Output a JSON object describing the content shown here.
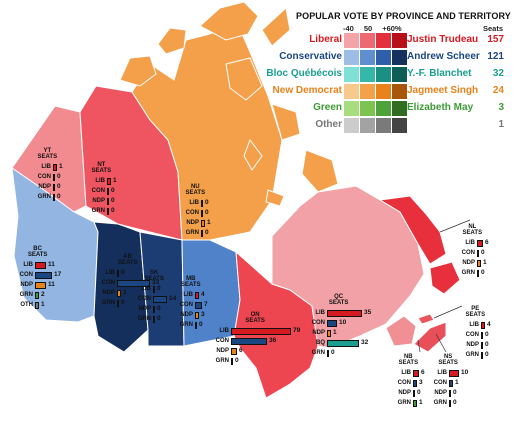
{
  "legend": {
    "title": "POPULAR VOTE BY PROVINCE AND TERRITORY",
    "scale_labels": [
      "-40",
      "50",
      "+60%"
    ],
    "seats_header": "Seats",
    "parties": [
      {
        "party": "Liberal",
        "leader": "Justin Trudeau",
        "seats": "157",
        "color": "#d71920",
        "shades": [
          "#f4a3a8",
          "#ee6a73",
          "#e3303a",
          "#b8101a"
        ]
      },
      {
        "party": "Conservative",
        "leader": "Andrew Scheer",
        "seats": "121",
        "color": "#1a4782",
        "shades": [
          "#9ebde6",
          "#5f8fd0",
          "#2f5fa8",
          "#15325f"
        ]
      },
      {
        "party": "Bloc Québécois",
        "leader": "Y.-F. Blanchet",
        "seats": "32",
        "color": "#1b9e8f",
        "shades": [
          "#7fe0d6",
          "#35b8a8",
          "#1b8f82",
          "#0d5e55"
        ]
      },
      {
        "party": "New Democrat",
        "leader": "Jagmeet Singh",
        "seats": "24",
        "color": "#e8821b",
        "shades": [
          "#f8c98c",
          "#f3a24a",
          "#e8821b",
          "#a8570a"
        ]
      },
      {
        "party": "Green",
        "leader": "Elizabeth May",
        "seats": "3",
        "color": "#3d9b35",
        "shades": [
          "#a7dc7f",
          "#7cc44f",
          "#4ea23a",
          "#2f6e22"
        ]
      },
      {
        "party": "Other",
        "leader": "",
        "seats": "1",
        "color": "#777777",
        "shades": [
          "#cccccc",
          "#a3a3a3",
          "#7a7a7a",
          "#444444"
        ]
      }
    ]
  },
  "provinces": [
    {
      "abbr": "YT",
      "seats_label": "SEATS",
      "rows": [
        {
          "party": "LIB",
          "seats": 1,
          "color": "#d71920"
        },
        {
          "party": "CON",
          "seats": 0,
          "color": "#1a4782"
        },
        {
          "party": "NDP",
          "seats": 0,
          "color": "#e8821b"
        },
        {
          "party": "GRN",
          "seats": 0,
          "color": "#3d9b35"
        }
      ]
    },
    {
      "abbr": "NT",
      "seats_label": "SEATS",
      "rows": [
        {
          "party": "LIB",
          "seats": 1,
          "color": "#d71920"
        },
        {
          "party": "CON",
          "seats": 0,
          "color": "#1a4782"
        },
        {
          "party": "NDP",
          "seats": 0,
          "color": "#e8821b"
        },
        {
          "party": "GRN",
          "seats": 0,
          "color": "#3d9b35"
        }
      ]
    },
    {
      "abbr": "NU",
      "seats_label": "SEATS",
      "rows": [
        {
          "party": "LIB",
          "seats": 0,
          "color": "#d71920"
        },
        {
          "party": "CON",
          "seats": 0,
          "color": "#1a4782"
        },
        {
          "party": "NDP",
          "seats": 1,
          "color": "#e8821b"
        },
        {
          "party": "GRN",
          "seats": 0,
          "color": "#3d9b35"
        }
      ]
    },
    {
      "abbr": "BC",
      "seats_label": "SEATS",
      "rows": [
        {
          "party": "LIB",
          "seats": 11,
          "color": "#d71920"
        },
        {
          "party": "CON",
          "seats": 17,
          "color": "#1a4782"
        },
        {
          "party": "NDP",
          "seats": 11,
          "color": "#e8821b"
        },
        {
          "party": "GRN",
          "seats": 2,
          "color": "#3d9b35"
        },
        {
          "party": "OTH",
          "seats": 1,
          "color": "#777777"
        }
      ]
    },
    {
      "abbr": "AB",
      "seats_label": "SEATS",
      "rows": [
        {
          "party": "LIB",
          "seats": 0,
          "color": "#d71920"
        },
        {
          "party": "CON",
          "seats": 33,
          "color": "#1a4782"
        },
        {
          "party": "NDP",
          "seats": 1,
          "color": "#e8821b"
        },
        {
          "party": "GRN",
          "seats": 0,
          "color": "#3d9b35"
        }
      ]
    },
    {
      "abbr": "SK",
      "seats_label": "SEATS",
      "rows": [
        {
          "party": "LIB",
          "seats": 0,
          "color": "#d71920"
        },
        {
          "party": "CON",
          "seats": 14,
          "color": "#1a4782"
        },
        {
          "party": "NDP",
          "seats": 0,
          "color": "#e8821b"
        },
        {
          "party": "GRN",
          "seats": 0,
          "color": "#3d9b35"
        }
      ]
    },
    {
      "abbr": "MB",
      "seats_label": "SEATS",
      "rows": [
        {
          "party": "LIB",
          "seats": 4,
          "color": "#d71920"
        },
        {
          "party": "CON",
          "seats": 7,
          "color": "#1a4782"
        },
        {
          "party": "NDP",
          "seats": 3,
          "color": "#e8821b"
        },
        {
          "party": "GRN",
          "seats": 0,
          "color": "#3d9b35"
        }
      ]
    },
    {
      "abbr": "ON",
      "seats_label": "SEATS",
      "rows": [
        {
          "party": "LIB",
          "seats": 79,
          "color": "#d71920"
        },
        {
          "party": "CON",
          "seats": 36,
          "color": "#1a4782"
        },
        {
          "party": "NDP",
          "seats": 6,
          "color": "#e8821b"
        },
        {
          "party": "GRN",
          "seats": 0,
          "color": "#3d9b35"
        }
      ]
    },
    {
      "abbr": "QC",
      "seats_label": "SEATS",
      "rows": [
        {
          "party": "LIB",
          "seats": 35,
          "color": "#d71920"
        },
        {
          "party": "CON",
          "seats": 10,
          "color": "#1a4782"
        },
        {
          "party": "NDP",
          "seats": 1,
          "color": "#e8821b"
        },
        {
          "party": "BQ",
          "seats": 32,
          "color": "#1b9e8f"
        },
        {
          "party": "GRN",
          "seats": 0,
          "color": "#3d9b35"
        }
      ]
    },
    {
      "abbr": "NL",
      "seats_label": "SEATS",
      "rows": [
        {
          "party": "LIB",
          "seats": 6,
          "color": "#d71920"
        },
        {
          "party": "CON",
          "seats": 0,
          "color": "#1a4782"
        },
        {
          "party": "NDP",
          "seats": 1,
          "color": "#e8821b"
        },
        {
          "party": "GRN",
          "seats": 0,
          "color": "#3d9b35"
        }
      ]
    },
    {
      "abbr": "PE",
      "seats_label": "SEATS",
      "rows": [
        {
          "party": "LIB",
          "seats": 4,
          "color": "#d71920"
        },
        {
          "party": "CON",
          "seats": 0,
          "color": "#1a4782"
        },
        {
          "party": "NDP",
          "seats": 0,
          "color": "#e8821b"
        },
        {
          "party": "GRN",
          "seats": 0,
          "color": "#3d9b35"
        }
      ]
    },
    {
      "abbr": "NB",
      "seats_label": "SEATS",
      "rows": [
        {
          "party": "LIB",
          "seats": 6,
          "color": "#d71920"
        },
        {
          "party": "CON",
          "seats": 3,
          "color": "#1a4782"
        },
        {
          "party": "NDP",
          "seats": 0,
          "color": "#e8821b"
        },
        {
          "party": "GRN",
          "seats": 1,
          "color": "#3d9b35"
        }
      ]
    },
    {
      "abbr": "NS",
      "seats_label": "SEATS",
      "rows": [
        {
          "party": "LIB",
          "seats": 10,
          "color": "#d71920"
        },
        {
          "party": "CON",
          "seats": 1,
          "color": "#1a4782"
        },
        {
          "party": "NDP",
          "seats": 0,
          "color": "#e8821b"
        },
        {
          "party": "GRN",
          "seats": 0,
          "color": "#3d9b35"
        }
      ]
    }
  ],
  "region_colors": {
    "YT": "#f28b8f",
    "NT": "#ee5560",
    "NU": "#f4a04a",
    "BC": "#93b5e2",
    "AB": "#152f5c",
    "SK": "#1c3d74",
    "MB": "#4f82c9",
    "ON": "#ed4650",
    "QC": "#f2a2a6",
    "NL": "#e8303c",
    "PE": "#e9545d",
    "NB": "#f08f94",
    "NS": "#e84f58",
    "arctic_islands": "#f4a04a",
    "ocean": "#ffffff"
  }
}
